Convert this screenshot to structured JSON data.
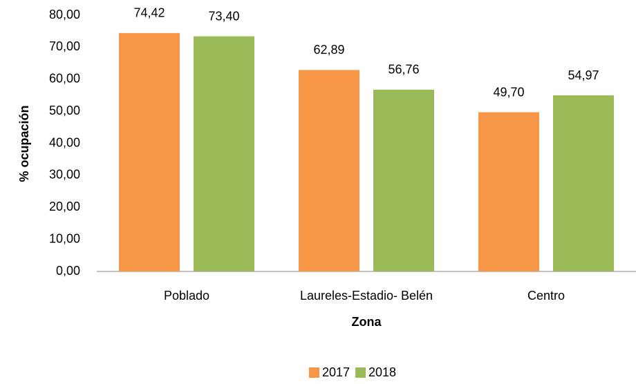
{
  "chart_data": {
    "type": "bar",
    "x_label": "Zona",
    "y_label": "% ocupación",
    "categories": [
      "Poblado",
      "Laureles-Estadio- Belén",
      "Centro"
    ],
    "series": [
      {
        "name": "2017",
        "color": "#f79646",
        "values": [
          74.42,
          62.89,
          49.7
        ],
        "value_labels": [
          "74,42",
          "62,89",
          "49,70"
        ]
      },
      {
        "name": "2018",
        "color": "#9bbb59",
        "values": [
          73.4,
          56.76,
          54.97
        ],
        "value_labels": [
          "73,40",
          "56,76",
          "54,97"
        ]
      }
    ],
    "ylim": [
      0,
      80
    ],
    "yticks": [
      {
        "value": 0,
        "label": "0,00"
      },
      {
        "value": 10,
        "label": "10,00"
      },
      {
        "value": 20,
        "label": "20,00"
      },
      {
        "value": 30,
        "label": "30,00"
      },
      {
        "value": 40,
        "label": "40,00"
      },
      {
        "value": 50,
        "label": "50,00"
      },
      {
        "value": 60,
        "label": "60,00"
      },
      {
        "value": 70,
        "label": "70,00"
      },
      {
        "value": 80,
        "label": "80,00"
      }
    ],
    "grid": false,
    "legend": "bottom"
  }
}
